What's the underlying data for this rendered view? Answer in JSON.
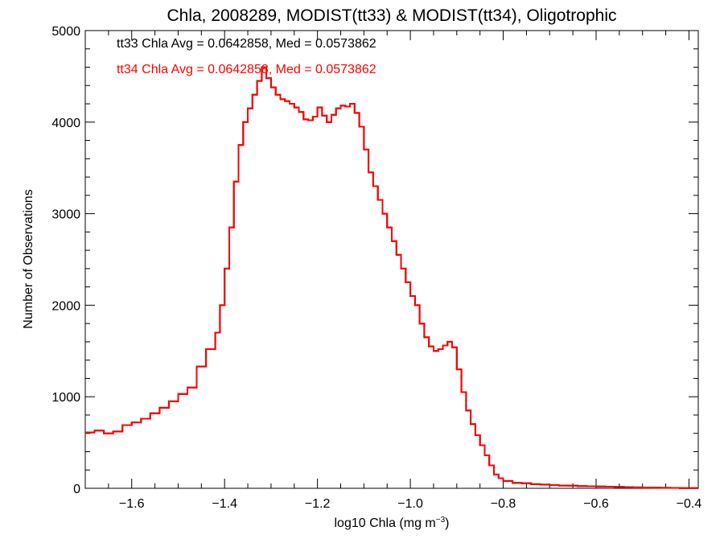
{
  "chart_data": {
    "type": "histogram-step",
    "title": "Chla, 2008289, MODIST(tt33) & MODIST(tt34), Oligotrophic",
    "xlabel_prefix": "log10 Chla (mg m",
    "xlabel_exp": "−3",
    "xlabel_suffix": ")",
    "ylabel": "Number of Observations",
    "xlim": [
      -1.7,
      -0.38
    ],
    "ylim": [
      0,
      5000
    ],
    "xticks": [
      {
        "v": -1.6,
        "label": "−1.6"
      },
      {
        "v": -1.4,
        "label": "−1.4"
      },
      {
        "v": -1.2,
        "label": "−1.2"
      },
      {
        "v": -1.0,
        "label": "−1.0"
      },
      {
        "v": -0.8,
        "label": "−0.8"
      },
      {
        "v": -0.6,
        "label": "−0.6"
      },
      {
        "v": -0.4,
        "label": "−0.4"
      }
    ],
    "yticks": [
      {
        "v": 0,
        "label": "0"
      },
      {
        "v": 1000,
        "label": "1000"
      },
      {
        "v": 2000,
        "label": "2000"
      },
      {
        "v": 3000,
        "label": "3000"
      },
      {
        "v": 4000,
        "label": "4000"
      },
      {
        "v": 5000,
        "label": "5000"
      }
    ],
    "annotations": [
      {
        "text": "tt33 Chla Avg = 0.0642858, Med = 0.0573862",
        "color": "#000000"
      },
      {
        "text": "tt34 Chla Avg = 0.0642858, Med = 0.0573862",
        "color": "#ff0000"
      }
    ],
    "series": [
      {
        "color_tt33": "#000000",
        "color_tt34": "#ff0000",
        "x": [
          -1.7,
          -1.68,
          -1.66,
          -1.64,
          -1.62,
          -1.6,
          -1.58,
          -1.56,
          -1.54,
          -1.52,
          -1.5,
          -1.48,
          -1.46,
          -1.44,
          -1.42,
          -1.41,
          -1.4,
          -1.39,
          -1.38,
          -1.37,
          -1.36,
          -1.35,
          -1.34,
          -1.33,
          -1.32,
          -1.31,
          -1.3,
          -1.29,
          -1.28,
          -1.27,
          -1.26,
          -1.25,
          -1.24,
          -1.23,
          -1.22,
          -1.21,
          -1.2,
          -1.19,
          -1.18,
          -1.17,
          -1.16,
          -1.15,
          -1.14,
          -1.13,
          -1.12,
          -1.11,
          -1.1,
          -1.09,
          -1.08,
          -1.07,
          -1.06,
          -1.05,
          -1.04,
          -1.03,
          -1.02,
          -1.01,
          -1.0,
          -0.99,
          -0.98,
          -0.97,
          -0.96,
          -0.95,
          -0.94,
          -0.93,
          -0.92,
          -0.91,
          -0.9,
          -0.89,
          -0.88,
          -0.87,
          -0.86,
          -0.85,
          -0.84,
          -0.83,
          -0.82,
          -0.81,
          -0.8,
          -0.78,
          -0.76,
          -0.74,
          -0.72,
          -0.7,
          -0.68,
          -0.66,
          -0.64,
          -0.62,
          -0.6,
          -0.58,
          -0.56,
          -0.54,
          -0.52,
          -0.5,
          -0.48,
          -0.46,
          -0.44,
          -0.42,
          -0.4,
          -0.38
        ],
        "y": [
          610,
          630,
          600,
          620,
          690,
          720,
          760,
          820,
          880,
          950,
          1030,
          1100,
          1330,
          1520,
          1700,
          2000,
          2400,
          2850,
          3350,
          3750,
          4000,
          4150,
          4300,
          4450,
          4600,
          4480,
          4380,
          4300,
          4250,
          4230,
          4200,
          4160,
          4110,
          4030,
          4020,
          4060,
          4160,
          4070,
          4000,
          4080,
          4150,
          4180,
          4170,
          4200,
          4100,
          3950,
          3700,
          3450,
          3300,
          3150,
          3000,
          2850,
          2700,
          2550,
          2400,
          2250,
          2100,
          2000,
          1800,
          1650,
          1550,
          1500,
          1520,
          1560,
          1600,
          1540,
          1300,
          1050,
          850,
          700,
          580,
          470,
          360,
          250,
          150,
          110,
          80,
          60,
          55,
          45,
          40,
          35,
          30,
          28,
          25,
          22,
          20,
          18,
          15,
          12,
          10,
          8,
          6,
          5,
          4,
          3,
          3,
          3
        ]
      }
    ]
  }
}
